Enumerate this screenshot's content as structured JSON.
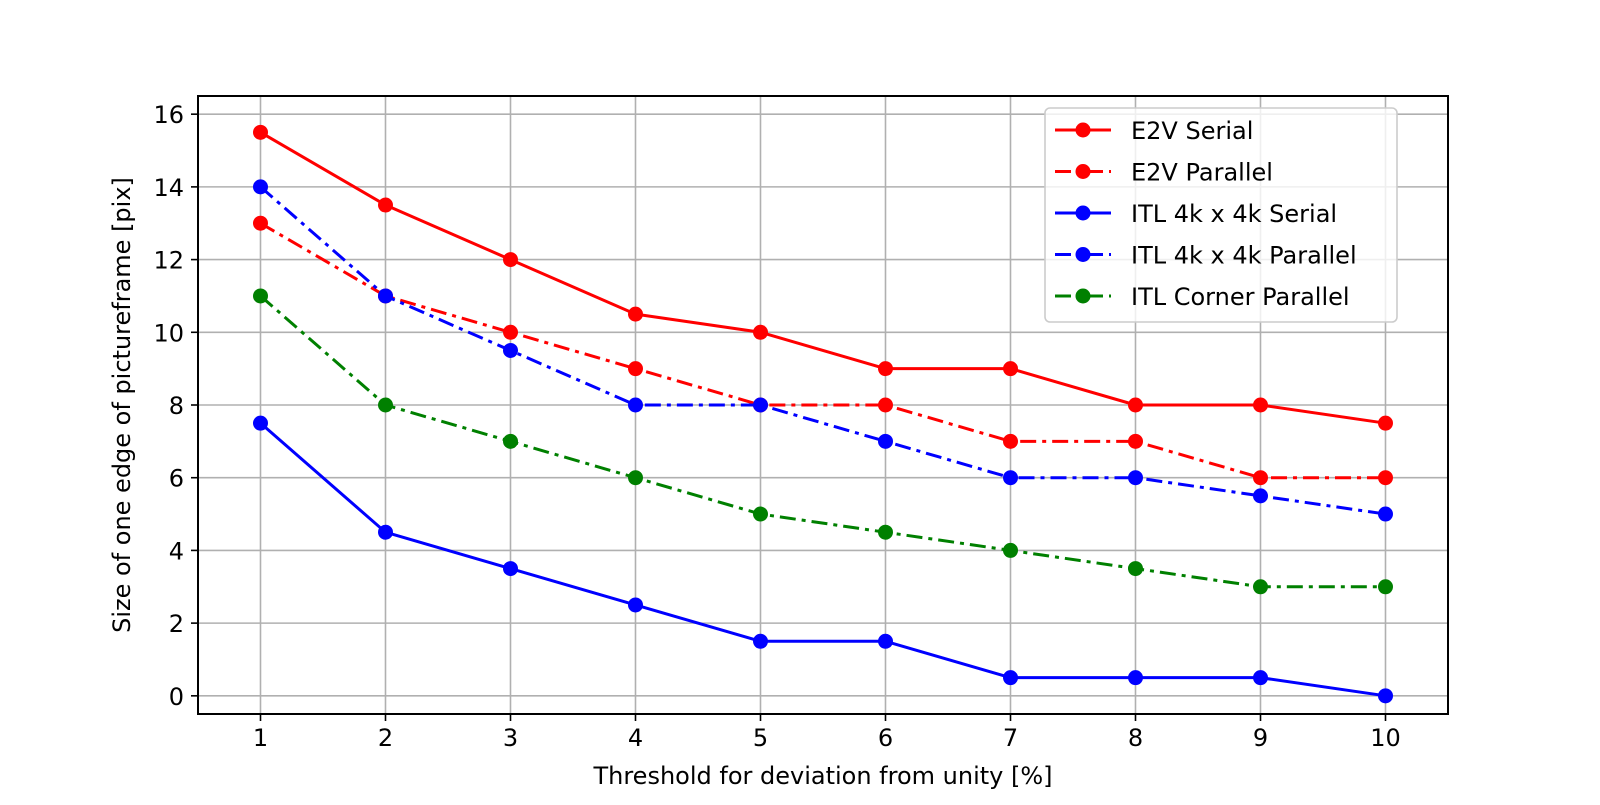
{
  "chart_data": {
    "type": "line",
    "title": "",
    "xlabel": "Threshold for deviation from unity [%]",
    "ylabel": "Size of one edge of pictureframe [pix]",
    "x": [
      1,
      2,
      3,
      4,
      5,
      6,
      7,
      8,
      9,
      10
    ],
    "xlim": [
      0.5,
      10.5
    ],
    "ylim": [
      -0.5,
      16.5
    ],
    "xticks": [
      1,
      2,
      3,
      4,
      5,
      6,
      7,
      8,
      9,
      10
    ],
    "yticks": [
      0,
      2,
      4,
      6,
      8,
      10,
      12,
      14,
      16
    ],
    "grid": true,
    "legend_position": "top-right",
    "series": [
      {
        "name": "E2V Serial",
        "color": "#ff0000",
        "style": "solid",
        "values": [
          15.5,
          13.5,
          12,
          10.5,
          10,
          9,
          9,
          8,
          8,
          7.5
        ]
      },
      {
        "name": "E2V Parallel",
        "color": "#ff0000",
        "style": "dashdot",
        "values": [
          13,
          11,
          10,
          9,
          8,
          8,
          7,
          7,
          6,
          6
        ]
      },
      {
        "name": "ITL 4k x 4k Serial",
        "color": "#0000ff",
        "style": "solid",
        "values": [
          7.5,
          4.5,
          3.5,
          2.5,
          1.5,
          1.5,
          0.5,
          0.5,
          0.5,
          0
        ]
      },
      {
        "name": "ITL 4k x 4k Parallel",
        "color": "#0000ff",
        "style": "dashdot",
        "values": [
          14,
          11,
          9.5,
          8,
          8,
          7,
          6,
          6,
          5.5,
          5
        ]
      },
      {
        "name": "ITL Corner Parallel",
        "color": "#008000",
        "style": "dashdot",
        "values": [
          11,
          8,
          7,
          6,
          5,
          4.5,
          4,
          3.5,
          3,
          3
        ]
      }
    ]
  }
}
